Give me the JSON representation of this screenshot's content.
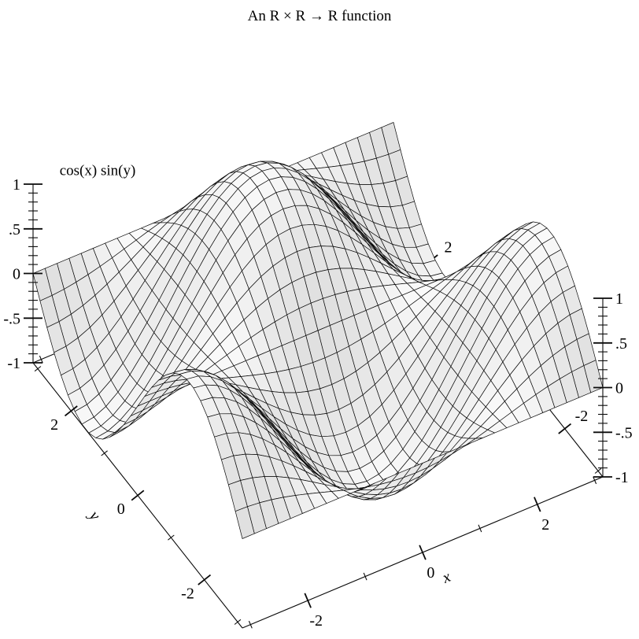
{
  "page": {
    "background": "#ffffff"
  },
  "chart_data": {
    "type": "surface",
    "title": "An R × R → R function",
    "function": "z = cos(x) * sin(y)",
    "z_axis_label": "cos(x) sin(y)",
    "x_label": "x",
    "y_label": "y",
    "x_domain": [
      -3.141592653589793,
      3.141592653589793
    ],
    "y_domain": [
      -3.141592653589793,
      3.141592653589793
    ],
    "z_range": [
      -1,
      1
    ],
    "grid_samples": 31,
    "x_ticks": {
      "major": [
        -2,
        0,
        2
      ],
      "major_labels": [
        "-2",
        "0",
        "2"
      ],
      "minor": [
        -3,
        -1,
        1,
        3
      ]
    },
    "y_ticks": {
      "major": [
        -2,
        0,
        2
      ],
      "major_labels": [
        "-2",
        "0",
        "2"
      ],
      "minor": [
        -3,
        -1,
        1,
        3
      ]
    },
    "z_ticks": {
      "major": [
        -1,
        -0.5,
        0,
        0.5,
        1
      ],
      "major_labels": [
        "-1",
        "-.5",
        "0",
        ".5",
        "1"
      ],
      "minor_step": 0.1
    },
    "legend": "none",
    "grid_on": true,
    "colors": {
      "surface_dark": "#b0b0b0",
      "surface_light": "#fafafa",
      "line": "#0a0a0a",
      "text": "#000000",
      "background": "#ffffff"
    }
  }
}
